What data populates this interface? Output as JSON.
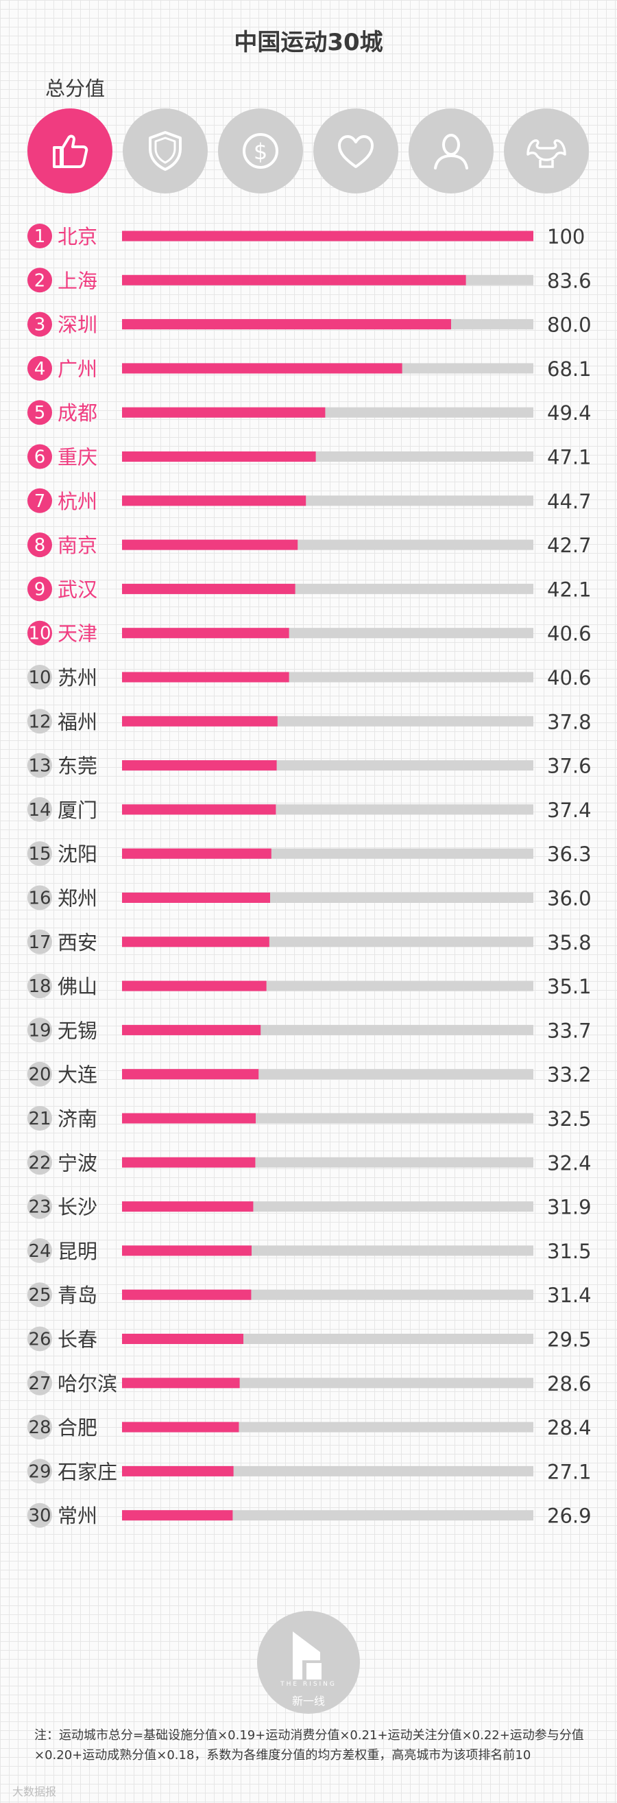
{
  "title": "中国运动30城",
  "subtitle": "总分值",
  "icons": [
    {
      "name": "thumbs-up-icon",
      "active": true
    },
    {
      "name": "shield-icon",
      "active": false
    },
    {
      "name": "dollar-coin-icon",
      "active": false
    },
    {
      "name": "heart-icon",
      "active": false
    },
    {
      "name": "person-icon",
      "active": false
    },
    {
      "name": "flexed-arms-icon",
      "active": false
    }
  ],
  "colors": {
    "accent": "#f03c80",
    "gray": "#cfcfcf",
    "track": "#d3d3d3",
    "text": "#3a3a3a"
  },
  "chart_data": {
    "type": "bar",
    "orientation": "horizontal",
    "xlim": [
      0,
      100
    ],
    "highlight_count": 10,
    "ranks": [
      "1",
      "2",
      "3",
      "4",
      "5",
      "6",
      "7",
      "8",
      "9",
      "10",
      "10",
      "12",
      "13",
      "14",
      "15",
      "16",
      "17",
      "18",
      "19",
      "20",
      "21",
      "22",
      "23",
      "24",
      "25",
      "26",
      "27",
      "28",
      "29",
      "30"
    ],
    "categories": [
      "北京",
      "上海",
      "深圳",
      "广州",
      "成都",
      "重庆",
      "杭州",
      "南京",
      "武汉",
      "天津",
      "苏州",
      "福州",
      "东莞",
      "厦门",
      "沈阳",
      "郑州",
      "西安",
      "佛山",
      "无锡",
      "大连",
      "济南",
      "宁波",
      "长沙",
      "昆明",
      "青岛",
      "长春",
      "哈尔滨",
      "合肥",
      "石家庄",
      "常州"
    ],
    "values": [
      100,
      83.6,
      80.0,
      68.1,
      49.4,
      47.1,
      44.7,
      42.7,
      42.1,
      40.6,
      40.6,
      37.8,
      37.6,
      37.4,
      36.3,
      36.0,
      35.8,
      35.1,
      33.7,
      33.2,
      32.5,
      32.4,
      31.9,
      31.5,
      31.4,
      29.5,
      28.6,
      28.4,
      27.1,
      26.9
    ],
    "value_labels": [
      "100",
      "83.6",
      "80.0",
      "68.1",
      "49.4",
      "47.1",
      "44.7",
      "42.7",
      "42.1",
      "40.6",
      "40.6",
      "37.8",
      "37.6",
      "37.4",
      "36.3",
      "36.0",
      "35.8",
      "35.1",
      "33.7",
      "33.2",
      "32.5",
      "32.4",
      "31.9",
      "31.5",
      "31.4",
      "29.5",
      "28.6",
      "28.4",
      "27.1",
      "26.9"
    ]
  },
  "logo": {
    "text": "新一线",
    "sub": "THE RISING"
  },
  "footnote": "注：运动城市总分=基础设施分值×0.19+运动消费分值×0.21+运动关注分值×0.22+运动参与分值×0.20+运动成熟分值×0.18，系数为各维度分值的均方差权重，高亮城市为该项排名前10",
  "watermark": "大数据报"
}
